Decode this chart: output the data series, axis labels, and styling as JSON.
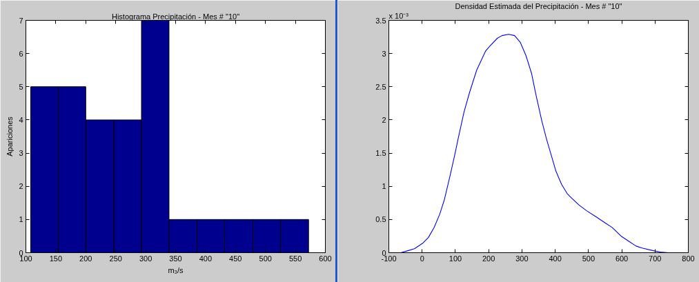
{
  "chart_data": [
    {
      "type": "histogram",
      "title": "Histograma Precipitación - Mes # \"10\"",
      "xlabel": "m₃/s",
      "ylabel": "Apariciones",
      "bins": [
        108,
        154,
        200,
        247,
        293,
        339,
        386,
        432,
        479,
        525,
        572
      ],
      "values": [
        5,
        5,
        4,
        4,
        7,
        1,
        1,
        1,
        1,
        1
      ],
      "color": "#00008f",
      "xlim": [
        100,
        600
      ],
      "ylim": [
        0,
        7
      ],
      "xticks": [
        100,
        150,
        200,
        250,
        300,
        350,
        400,
        450,
        500,
        550,
        600
      ],
      "yticks": [
        0,
        1,
        2,
        3,
        4,
        5,
        6,
        7
      ]
    },
    {
      "type": "line",
      "title": "Densidad Estimada del Precipitación - Mes # \"10\"",
      "annotations": [
        "x 10⁻³"
      ],
      "x": [
        -64,
        -43,
        -23,
        1,
        19,
        36,
        53,
        67,
        76,
        84,
        98,
        108,
        126,
        143,
        164,
        191,
        205,
        226,
        240,
        260,
        278,
        288,
        295,
        312,
        329,
        343,
        360,
        374,
        388,
        402,
        419,
        436,
        450,
        471,
        495,
        523,
        550,
        571,
        598,
        619,
        643,
        661,
        695,
        716,
        740
      ],
      "values": [
        0,
        0.03,
        0.06,
        0.14,
        0.23,
        0.38,
        0.58,
        0.8,
        0.99,
        1.16,
        1.47,
        1.71,
        2.12,
        2.42,
        2.75,
        3.04,
        3.12,
        3.23,
        3.27,
        3.29,
        3.27,
        3.21,
        3.17,
        2.97,
        2.7,
        2.36,
        1.98,
        1.71,
        1.47,
        1.23,
        1.03,
        0.89,
        0.82,
        0.72,
        0.63,
        0.54,
        0.45,
        0.38,
        0.25,
        0.18,
        0.1,
        0.07,
        0.03,
        0.01,
        0.0
      ],
      "color": "#0000ff",
      "xlim": [
        -100,
        800
      ],
      "ylim": [
        0,
        3.5
      ],
      "xticks": [
        -100,
        0,
        100,
        200,
        300,
        400,
        500,
        600,
        700,
        800
      ],
      "yticks": [
        0,
        0.5,
        1,
        1.5,
        2,
        2.5,
        3,
        3.5
      ]
    }
  ]
}
